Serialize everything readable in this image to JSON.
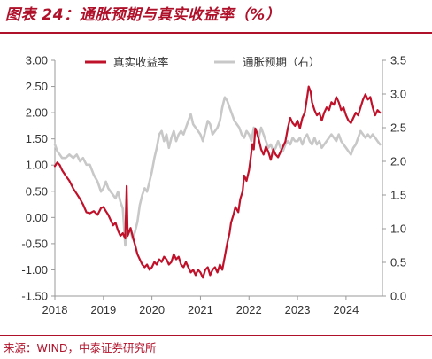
{
  "title": "图表 24：通胀预期与真实收益率（%）",
  "source": "来源：WIND，中泰证券研究所",
  "chart_data": {
    "type": "line",
    "x_ticks": [
      "2018",
      "2019",
      "2020",
      "2021",
      "2022",
      "2023",
      "2024"
    ],
    "x_range": [
      2018.0,
      2024.75
    ],
    "y_left_range": [
      -1.5,
      3.0
    ],
    "y_left_ticks": [
      "3.00",
      "2.50",
      "2.00",
      "1.50",
      "1.00",
      "0.50",
      "0.00",
      "-0.50",
      "-1.00",
      "-1.50"
    ],
    "y_right_range": [
      0.0,
      3.5
    ],
    "y_right_ticks": [
      "3.5",
      "3.0",
      "2.5",
      "2.0",
      "1.5",
      "1.0",
      "0.5",
      "0.0"
    ],
    "legend_position": "top-center",
    "grid": false,
    "series": [
      {
        "name": "真实收益率",
        "axis": "left",
        "color": "#c0112a",
        "points": [
          [
            2018.0,
            0.98
          ],
          [
            2018.05,
            1.05
          ],
          [
            2018.1,
            1.0
          ],
          [
            2018.15,
            0.9
          ],
          [
            2018.22,
            0.8
          ],
          [
            2018.3,
            0.7
          ],
          [
            2018.38,
            0.55
          ],
          [
            2018.45,
            0.45
          ],
          [
            2018.52,
            0.35
          ],
          [
            2018.58,
            0.25
          ],
          [
            2018.65,
            0.1
          ],
          [
            2018.72,
            0.08
          ],
          [
            2018.8,
            0.12
          ],
          [
            2018.88,
            0.05
          ],
          [
            2018.95,
            0.18
          ],
          [
            2019.0,
            0.2
          ],
          [
            2019.05,
            0.12
          ],
          [
            2019.1,
            0.05
          ],
          [
            2019.15,
            -0.05
          ],
          [
            2019.2,
            -0.15
          ],
          [
            2019.25,
            -0.1
          ],
          [
            2019.3,
            -0.25
          ],
          [
            2019.35,
            -0.35
          ],
          [
            2019.4,
            -0.3
          ],
          [
            2019.45,
            -0.4
          ],
          [
            2019.48,
            0.6
          ],
          [
            2019.5,
            -0.35
          ],
          [
            2019.52,
            -0.3
          ],
          [
            2019.56,
            -0.2
          ],
          [
            2019.6,
            -0.35
          ],
          [
            2019.63,
            -0.45
          ],
          [
            2019.66,
            -0.55
          ],
          [
            2019.7,
            -0.7
          ],
          [
            2019.75,
            -0.8
          ],
          [
            2019.8,
            -0.9
          ],
          [
            2019.85,
            -0.95
          ],
          [
            2019.9,
            -0.9
          ],
          [
            2019.95,
            -1.0
          ],
          [
            2020.0,
            -0.95
          ],
          [
            2020.05,
            -0.85
          ],
          [
            2020.1,
            -0.9
          ],
          [
            2020.15,
            -0.8
          ],
          [
            2020.2,
            -0.85
          ],
          [
            2020.25,
            -0.75
          ],
          [
            2020.3,
            -0.8
          ],
          [
            2020.35,
            -0.9
          ],
          [
            2020.4,
            -0.85
          ],
          [
            2020.45,
            -0.7
          ],
          [
            2020.5,
            -0.8
          ],
          [
            2020.55,
            -0.75
          ],
          [
            2020.6,
            -0.9
          ],
          [
            2020.65,
            -0.95
          ],
          [
            2020.7,
            -0.85
          ],
          [
            2020.75,
            -0.95
          ],
          [
            2020.8,
            -1.05
          ],
          [
            2020.85,
            -1.0
          ],
          [
            2020.9,
            -1.1
          ],
          [
            2020.95,
            -1.0
          ],
          [
            2021.0,
            -1.05
          ],
          [
            2021.05,
            -1.15
          ],
          [
            2021.1,
            -1.0
          ],
          [
            2021.15,
            -0.95
          ],
          [
            2021.2,
            -1.1
          ],
          [
            2021.25,
            -1.0
          ],
          [
            2021.3,
            -0.95
          ],
          [
            2021.35,
            -1.05
          ],
          [
            2021.4,
            -0.9
          ],
          [
            2021.45,
            -1.0
          ],
          [
            2021.5,
            -0.75
          ],
          [
            2021.55,
            -0.5
          ],
          [
            2021.6,
            -0.3
          ],
          [
            2021.63,
            -0.1
          ],
          [
            2021.68,
            0.05
          ],
          [
            2021.72,
            0.2
          ],
          [
            2021.78,
            0.1
          ],
          [
            2021.82,
            0.35
          ],
          [
            2021.87,
            0.5
          ],
          [
            2021.9,
            0.8
          ],
          [
            2021.95,
            0.7
          ],
          [
            2022.0,
            0.9
          ],
          [
            2022.03,
            1.1
          ],
          [
            2022.07,
            1.4
          ],
          [
            2022.1,
            1.3
          ],
          [
            2022.13,
            1.7
          ],
          [
            2022.17,
            1.6
          ],
          [
            2022.2,
            1.5
          ],
          [
            2022.25,
            1.3
          ],
          [
            2022.3,
            1.2
          ],
          [
            2022.35,
            1.35
          ],
          [
            2022.4,
            1.25
          ],
          [
            2022.45,
            1.1
          ],
          [
            2022.5,
            1.3
          ],
          [
            2022.55,
            1.2
          ],
          [
            2022.6,
            1.15
          ],
          [
            2022.65,
            1.25
          ],
          [
            2022.7,
            1.35
          ],
          [
            2022.75,
            1.45
          ],
          [
            2022.8,
            1.7
          ],
          [
            2022.85,
            1.9
          ],
          [
            2022.9,
            1.8
          ],
          [
            2022.95,
            1.75
          ],
          [
            2023.0,
            1.85
          ],
          [
            2023.05,
            1.7
          ],
          [
            2023.1,
            1.9
          ],
          [
            2023.15,
            2.0
          ],
          [
            2023.2,
            2.3
          ],
          [
            2023.23,
            2.5
          ],
          [
            2023.27,
            2.4
          ],
          [
            2023.3,
            2.2
          ],
          [
            2023.35,
            2.05
          ],
          [
            2023.4,
            1.95
          ],
          [
            2023.45,
            2.0
          ],
          [
            2023.5,
            1.85
          ],
          [
            2023.55,
            2.0
          ],
          [
            2023.6,
            2.1
          ],
          [
            2023.65,
            2.05
          ],
          [
            2023.7,
            2.2
          ],
          [
            2023.75,
            2.15
          ],
          [
            2023.8,
            2.3
          ],
          [
            2023.85,
            2.2
          ],
          [
            2023.9,
            2.05
          ],
          [
            2023.95,
            2.1
          ],
          [
            2024.0,
            1.95
          ],
          [
            2024.05,
            1.85
          ],
          [
            2024.1,
            1.8
          ],
          [
            2024.15,
            1.9
          ],
          [
            2024.2,
            2.0
          ],
          [
            2024.25,
            1.95
          ],
          [
            2024.3,
            2.1
          ],
          [
            2024.35,
            2.25
          ],
          [
            2024.4,
            2.35
          ],
          [
            2024.45,
            2.25
          ],
          [
            2024.5,
            2.3
          ],
          [
            2024.55,
            2.1
          ],
          [
            2024.6,
            1.95
          ],
          [
            2024.65,
            2.05
          ],
          [
            2024.7,
            2.0
          ]
        ]
      },
      {
        "name": "通胀预期（右）",
        "axis": "right",
        "color": "#c8c8c8",
        "points": [
          [
            2018.0,
            2.25
          ],
          [
            2018.05,
            2.15
          ],
          [
            2018.1,
            2.1
          ],
          [
            2018.15,
            2.05
          ],
          [
            2018.22,
            2.05
          ],
          [
            2018.3,
            2.1
          ],
          [
            2018.38,
            2.05
          ],
          [
            2018.45,
            2.1
          ],
          [
            2018.52,
            2.0
          ],
          [
            2018.58,
            2.05
          ],
          [
            2018.65,
            1.95
          ],
          [
            2018.72,
            1.95
          ],
          [
            2018.8,
            1.8
          ],
          [
            2018.88,
            1.7
          ],
          [
            2018.95,
            1.55
          ],
          [
            2019.0,
            1.6
          ],
          [
            2019.05,
            1.7
          ],
          [
            2019.1,
            1.6
          ],
          [
            2019.15,
            1.55
          ],
          [
            2019.2,
            1.5
          ],
          [
            2019.25,
            1.45
          ],
          [
            2019.3,
            1.55
          ],
          [
            2019.35,
            1.4
          ],
          [
            2019.4,
            1.3
          ],
          [
            2019.45,
            0.75
          ],
          [
            2019.5,
            0.95
          ],
          [
            2019.55,
            1.0
          ],
          [
            2019.6,
            0.85
          ],
          [
            2019.65,
            0.95
          ],
          [
            2019.7,
            1.1
          ],
          [
            2019.75,
            1.35
          ],
          [
            2019.8,
            1.5
          ],
          [
            2019.85,
            1.6
          ],
          [
            2019.9,
            1.55
          ],
          [
            2019.95,
            1.7
          ],
          [
            2020.0,
            1.85
          ],
          [
            2020.05,
            2.05
          ],
          [
            2020.1,
            2.2
          ],
          [
            2020.15,
            2.4
          ],
          [
            2020.2,
            2.45
          ],
          [
            2020.25,
            2.3
          ],
          [
            2020.3,
            2.4
          ],
          [
            2020.35,
            2.2
          ],
          [
            2020.4,
            2.35
          ],
          [
            2020.45,
            2.45
          ],
          [
            2020.5,
            2.3
          ],
          [
            2020.55,
            2.4
          ],
          [
            2020.6,
            2.45
          ],
          [
            2020.65,
            2.4
          ],
          [
            2020.7,
            2.5
          ],
          [
            2020.75,
            2.6
          ],
          [
            2020.8,
            2.7
          ],
          [
            2020.85,
            2.55
          ],
          [
            2020.9,
            2.5
          ],
          [
            2020.95,
            2.45
          ],
          [
            2021.0,
            2.4
          ],
          [
            2021.05,
            2.3
          ],
          [
            2021.1,
            2.45
          ],
          [
            2021.15,
            2.6
          ],
          [
            2021.2,
            2.55
          ],
          [
            2021.25,
            2.4
          ],
          [
            2021.3,
            2.45
          ],
          [
            2021.35,
            2.5
          ],
          [
            2021.4,
            2.6
          ],
          [
            2021.45,
            2.8
          ],
          [
            2021.5,
            2.95
          ],
          [
            2021.55,
            2.9
          ],
          [
            2021.6,
            2.8
          ],
          [
            2021.65,
            2.7
          ],
          [
            2021.7,
            2.6
          ],
          [
            2021.75,
            2.55
          ],
          [
            2021.8,
            2.5
          ],
          [
            2021.85,
            2.4
          ],
          [
            2021.9,
            2.35
          ],
          [
            2021.95,
            2.45
          ],
          [
            2022.0,
            2.4
          ],
          [
            2022.05,
            2.3
          ],
          [
            2022.1,
            2.5
          ],
          [
            2022.15,
            2.45
          ],
          [
            2022.2,
            2.35
          ],
          [
            2022.25,
            2.5
          ],
          [
            2022.3,
            2.4
          ],
          [
            2022.35,
            2.3
          ],
          [
            2022.4,
            2.2
          ],
          [
            2022.45,
            2.25
          ],
          [
            2022.5,
            2.15
          ],
          [
            2022.55,
            2.2
          ],
          [
            2022.6,
            2.3
          ],
          [
            2022.65,
            2.2
          ],
          [
            2022.7,
            2.15
          ],
          [
            2022.75,
            2.25
          ],
          [
            2022.8,
            2.3
          ],
          [
            2022.85,
            2.25
          ],
          [
            2022.9,
            2.35
          ],
          [
            2022.95,
            2.3
          ],
          [
            2023.0,
            2.3
          ],
          [
            2023.05,
            2.35
          ],
          [
            2023.1,
            2.25
          ],
          [
            2023.15,
            2.35
          ],
          [
            2023.2,
            2.4
          ],
          [
            2023.25,
            2.3
          ],
          [
            2023.3,
            2.25
          ],
          [
            2023.35,
            2.35
          ],
          [
            2023.4,
            2.25
          ],
          [
            2023.45,
            2.3
          ],
          [
            2023.5,
            2.2
          ],
          [
            2023.55,
            2.25
          ],
          [
            2023.6,
            2.3
          ],
          [
            2023.65,
            2.35
          ],
          [
            2023.7,
            2.4
          ],
          [
            2023.75,
            2.35
          ],
          [
            2023.8,
            2.3
          ],
          [
            2023.85,
            2.4
          ],
          [
            2023.9,
            2.3
          ],
          [
            2023.95,
            2.25
          ],
          [
            2024.0,
            2.2
          ],
          [
            2024.05,
            2.15
          ],
          [
            2024.1,
            2.1
          ],
          [
            2024.15,
            2.2
          ],
          [
            2024.2,
            2.25
          ],
          [
            2024.25,
            2.35
          ],
          [
            2024.3,
            2.45
          ],
          [
            2024.35,
            2.4
          ],
          [
            2024.4,
            2.35
          ],
          [
            2024.45,
            2.4
          ],
          [
            2024.5,
            2.35
          ],
          [
            2024.55,
            2.4
          ],
          [
            2024.6,
            2.35
          ],
          [
            2024.65,
            2.3
          ],
          [
            2024.7,
            2.25
          ]
        ]
      }
    ]
  }
}
